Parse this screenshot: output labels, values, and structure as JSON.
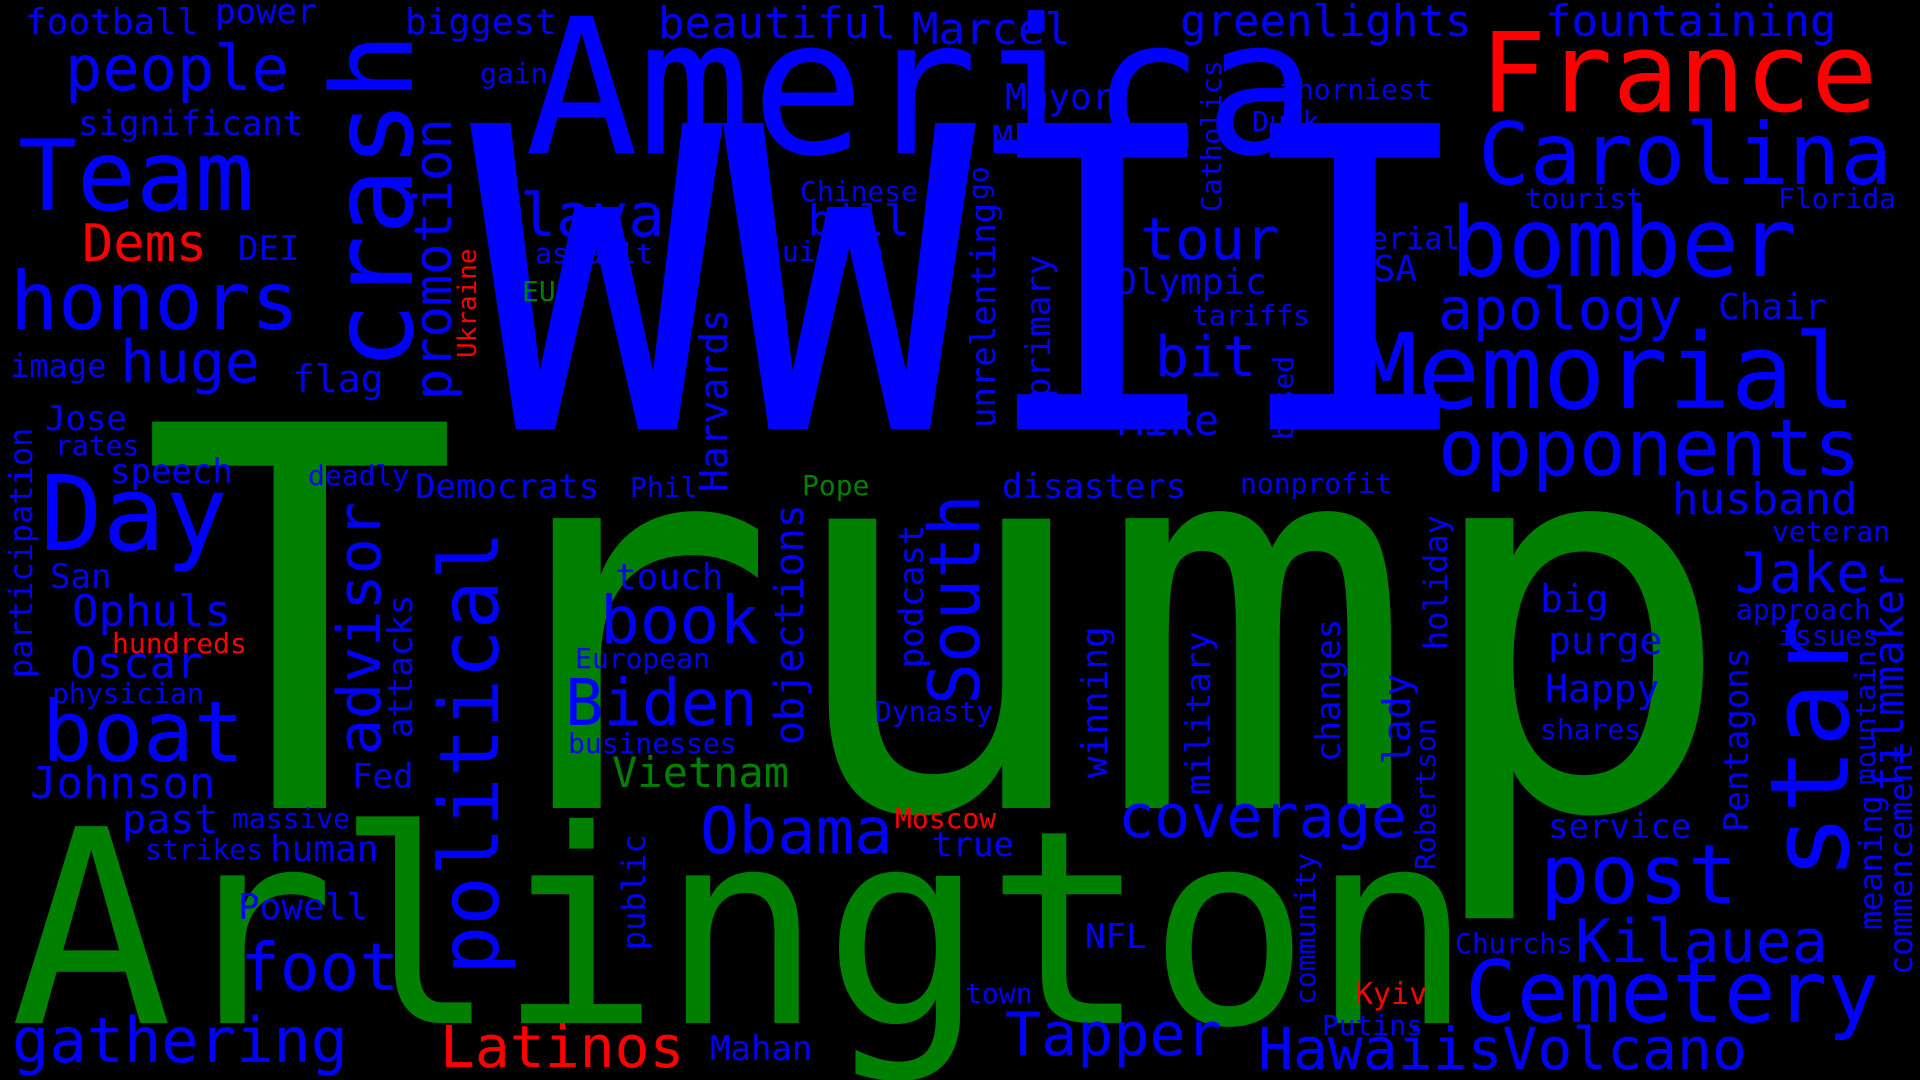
{
  "colors": {
    "background": "#000000",
    "blue": "#0000FF",
    "green": "#008000",
    "red": "#FF0000"
  },
  "words": [
    {
      "text": "Trump",
      "color": "green"
    },
    {
      "text": "WWII",
      "color": "blue"
    },
    {
      "text": "Arlington",
      "color": "green"
    },
    {
      "text": "America",
      "color": "blue"
    },
    {
      "text": "France",
      "color": "red"
    },
    {
      "text": "Carolina",
      "color": "blue"
    },
    {
      "text": "bomber",
      "color": "blue"
    },
    {
      "text": "Memorial",
      "color": "blue"
    },
    {
      "text": "opponents",
      "color": "blue"
    },
    {
      "text": "star",
      "color": "blue"
    },
    {
      "text": "post",
      "color": "blue"
    },
    {
      "text": "Cemetery",
      "color": "blue"
    },
    {
      "text": "HawaiisVolcano",
      "color": "blue"
    },
    {
      "text": "Kilauea",
      "color": "blue"
    },
    {
      "text": "Tapper",
      "color": "blue"
    },
    {
      "text": "coverage",
      "color": "blue"
    },
    {
      "text": "Team",
      "color": "blue"
    },
    {
      "text": "crash",
      "color": "blue"
    },
    {
      "text": "honors",
      "color": "blue"
    },
    {
      "text": "Day",
      "color": "blue"
    },
    {
      "text": "boat",
      "color": "blue"
    },
    {
      "text": "gathering",
      "color": "blue"
    },
    {
      "text": "Latinos",
      "color": "red"
    },
    {
      "text": "political",
      "color": "blue"
    },
    {
      "text": "South",
      "color": "blue"
    },
    {
      "text": "Obama",
      "color": "blue"
    },
    {
      "text": "Biden",
      "color": "blue"
    },
    {
      "text": "book",
      "color": "blue"
    },
    {
      "text": "foot",
      "color": "blue"
    },
    {
      "text": "people",
      "color": "blue"
    },
    {
      "text": "huge",
      "color": "blue"
    },
    {
      "text": "lava",
      "color": "blue"
    },
    {
      "text": "tour",
      "color": "blue"
    },
    {
      "text": "bit",
      "color": "blue"
    },
    {
      "text": "apology",
      "color": "blue"
    },
    {
      "text": "Jake",
      "color": "blue"
    },
    {
      "text": "husband",
      "color": "blue"
    },
    {
      "text": "Dems",
      "color": "red"
    },
    {
      "text": "promotion",
      "color": "blue"
    },
    {
      "text": "advisor",
      "color": "blue"
    },
    {
      "text": "Ophuls",
      "color": "blue"
    },
    {
      "text": "Oscar",
      "color": "blue"
    },
    {
      "text": "Johnson",
      "color": "blue"
    },
    {
      "text": "Vietnam",
      "color": "green"
    },
    {
      "text": "Marcel",
      "color": "blue"
    },
    {
      "text": "greenlights",
      "color": "blue"
    },
    {
      "text": "fountaining",
      "color": "blue"
    },
    {
      "text": "beautiful",
      "color": "blue"
    },
    {
      "text": "biggest",
      "color": "blue"
    },
    {
      "text": "football",
      "color": "blue"
    },
    {
      "text": "power",
      "color": "blue"
    },
    {
      "text": "significant",
      "color": "blue"
    },
    {
      "text": "Mayor",
      "color": "blue"
    },
    {
      "text": "Matt",
      "color": "blue"
    },
    {
      "text": "bill",
      "color": "blue"
    },
    {
      "text": "Mike",
      "color": "blue"
    },
    {
      "text": "Olympic",
      "color": "blue"
    },
    {
      "text": "USA",
      "color": "blue"
    },
    {
      "text": "Chair",
      "color": "blue"
    },
    {
      "text": "Happy",
      "color": "blue"
    },
    {
      "text": "purge",
      "color": "blue"
    },
    {
      "text": "big",
      "color": "blue"
    },
    {
      "text": "touch",
      "color": "blue"
    },
    {
      "text": "speech",
      "color": "blue"
    },
    {
      "text": "Democrats",
      "color": "blue"
    },
    {
      "text": "disasters",
      "color": "blue"
    },
    {
      "text": "Jose",
      "color": "blue"
    },
    {
      "text": "San",
      "color": "blue"
    },
    {
      "text": "past",
      "color": "blue"
    },
    {
      "text": "human",
      "color": "blue"
    },
    {
      "text": "Powell",
      "color": "blue"
    },
    {
      "text": "flag",
      "color": "blue"
    },
    {
      "text": "DEI",
      "color": "blue"
    },
    {
      "text": "image",
      "color": "blue"
    },
    {
      "text": "true",
      "color": "blue"
    },
    {
      "text": "service",
      "color": "blue"
    },
    {
      "text": "NFL",
      "color": "blue"
    },
    {
      "text": "Mahan",
      "color": "blue"
    },
    {
      "text": "thorniest",
      "color": "blue"
    },
    {
      "text": "Duck",
      "color": "blue"
    },
    {
      "text": "tourist",
      "color": "blue"
    },
    {
      "text": "Florida",
      "color": "blue"
    },
    {
      "text": "aerial",
      "color": "blue"
    },
    {
      "text": "tariffs",
      "color": "blue"
    },
    {
      "text": "Chinese",
      "color": "blue"
    },
    {
      "text": "suicide",
      "color": "blue"
    },
    {
      "text": "assault",
      "color": "blue"
    },
    {
      "text": "gain",
      "color": "blue"
    },
    {
      "text": "EU",
      "color": "green"
    },
    {
      "text": "Pope",
      "color": "green"
    },
    {
      "text": "Phil",
      "color": "blue"
    },
    {
      "text": "deadly",
      "color": "blue"
    },
    {
      "text": "rates",
      "color": "blue"
    },
    {
      "text": "hundreds",
      "color": "red"
    },
    {
      "text": "physician",
      "color": "blue"
    },
    {
      "text": "European",
      "color": "blue"
    },
    {
      "text": "businesses",
      "color": "blue"
    },
    {
      "text": "Dynasty",
      "color": "blue"
    },
    {
      "text": "massive",
      "color": "blue"
    },
    {
      "text": "strikes",
      "color": "blue"
    },
    {
      "text": "Moscow",
      "color": "red"
    },
    {
      "text": "Kyiv",
      "color": "red"
    },
    {
      "text": "Putins",
      "color": "blue"
    },
    {
      "text": "town",
      "color": "blue"
    },
    {
      "text": "Churchs",
      "color": "blue"
    },
    {
      "text": "nonprofit",
      "color": "blue"
    },
    {
      "text": "veteran",
      "color": "blue"
    },
    {
      "text": "approach",
      "color": "blue"
    },
    {
      "text": "issues",
      "color": "blue"
    },
    {
      "text": "shares",
      "color": "blue"
    },
    {
      "text": "Ukraine",
      "color": "red"
    },
    {
      "text": "participation",
      "color": "blue"
    },
    {
      "text": "attacks",
      "color": "blue"
    },
    {
      "text": "Fed",
      "color": "blue"
    },
    {
      "text": "Harvards",
      "color": "blue"
    },
    {
      "text": "objections",
      "color": "blue"
    },
    {
      "text": "podcast",
      "color": "blue"
    },
    {
      "text": "unrelenting",
      "color": "blue"
    },
    {
      "text": "primary",
      "color": "blue"
    },
    {
      "text": "winning",
      "color": "blue"
    },
    {
      "text": "military",
      "color": "blue"
    },
    {
      "text": "changes",
      "color": "blue"
    },
    {
      "text": "lady",
      "color": "blue"
    },
    {
      "text": "holiday",
      "color": "blue"
    },
    {
      "text": "Robertson",
      "color": "blue"
    },
    {
      "text": "Catholics",
      "color": "blue"
    },
    {
      "text": "based",
      "color": "blue"
    },
    {
      "text": "public",
      "color": "blue"
    },
    {
      "text": "community",
      "color": "blue"
    },
    {
      "text": "Pentagons",
      "color": "blue"
    },
    {
      "text": "filmmaker",
      "color": "blue"
    },
    {
      "text": "commencement",
      "color": "blue"
    },
    {
      "text": "mountain",
      "color": "blue"
    },
    {
      "text": "meaning",
      "color": "blue"
    },
    {
      "text": "go",
      "color": "blue"
    }
  ]
}
